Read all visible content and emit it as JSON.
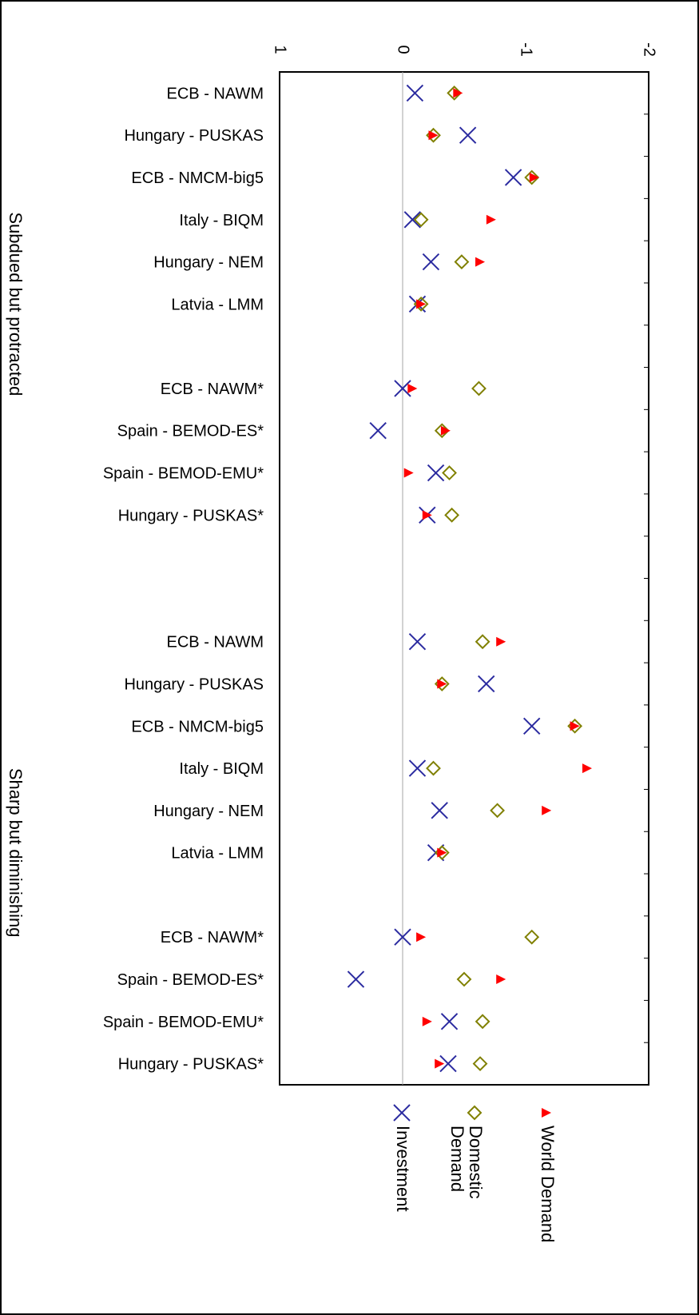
{
  "chart_data": {
    "type": "scatter",
    "orientation": "rotated-90-clockwise",
    "xlim": [
      -2,
      1
    ],
    "x_ticks": [
      "-2",
      "-1",
      "0",
      "1"
    ],
    "x_tick_values": [
      -2,
      -1,
      0,
      1
    ],
    "gridline_at_zero": true,
    "legend_position": "right",
    "groups": [
      {
        "label": "Subdued but protracted",
        "first_index": 0,
        "last_index": 9
      },
      {
        "label": "Sharp but diminishing",
        "first_index": 10,
        "last_index": 19
      }
    ],
    "categories": [
      "ECB - NAWM",
      "Hungary - PUSKAS",
      "ECB - NMCM-big5",
      "Italy - BIQM",
      "Hungary - NEM",
      "Latvia - LMM",
      "ECB - NAWM*",
      "Spain - BEMOD-ES*",
      "Spain - BEMOD-EMU*",
      "Hungary - PUSKAS*",
      "ECB - NAWM",
      "Hungary - PUSKAS",
      "ECB - NMCM-big5",
      "Italy - BIQM",
      "Hungary - NEM",
      "Latvia - LMM",
      "ECB - NAWM*",
      "Spain - BEMOD-ES*",
      "Spain - BEMOD-EMU*",
      "Hungary - PUSKAS*"
    ],
    "category_slots": [
      0,
      1,
      2,
      3,
      4,
      5,
      7,
      8,
      9,
      10,
      13,
      14,
      15,
      16,
      17,
      18,
      20,
      21,
      22,
      23
    ],
    "total_slots": 24,
    "series": [
      {
        "name": "World Demand",
        "marker": "triangle",
        "color": "#ff0000",
        "values": [
          -0.45,
          -0.25,
          -1.07,
          -0.72,
          -0.63,
          -0.15,
          -0.08,
          -0.35,
          -0.05,
          -0.2,
          -0.8,
          -0.32,
          -1.4,
          -1.5,
          -1.17,
          -0.32,
          -0.15,
          -0.8,
          -0.2,
          -0.3
        ]
      },
      {
        "name": "Domestic Demand",
        "marker": "diamond",
        "color": "#808000",
        "values": [
          -0.42,
          -0.25,
          -1.05,
          -0.15,
          -0.48,
          -0.15,
          -0.62,
          -0.32,
          -0.38,
          -0.4,
          -0.65,
          -0.32,
          -1.4,
          -0.25,
          -0.77,
          -0.32,
          -1.05,
          -0.5,
          -0.65,
          -0.63
        ]
      },
      {
        "name": "Investment",
        "marker": "x",
        "color": "#2b2ba0",
        "values": [
          -0.1,
          -0.53,
          -0.9,
          -0.08,
          -0.23,
          -0.12,
          0.0,
          0.2,
          -0.27,
          -0.2,
          -0.12,
          -0.68,
          -1.05,
          -0.12,
          -0.3,
          -0.27,
          0.0,
          0.38,
          -0.38,
          -0.37
        ]
      }
    ]
  }
}
